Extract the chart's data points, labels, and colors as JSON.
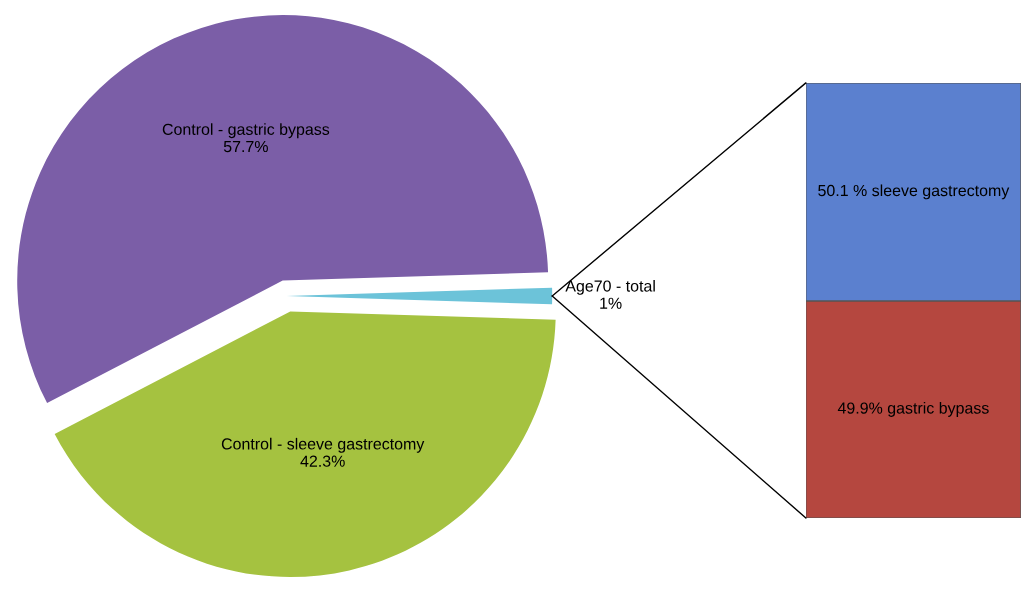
{
  "chart_data": [
    {
      "type": "pie",
      "categories": [
        "Control - gastric bypass",
        "Control - sleeve gastrectomy",
        "Age70 - total"
      ],
      "values": [
        57.7,
        42.3,
        1
      ],
      "value_labels": [
        "57.7%",
        "42.3%",
        "1%"
      ],
      "colors": [
        "#7b5ea7",
        "#a5c240",
        "#6cc3d9"
      ],
      "legend": false
    },
    {
      "type": "bar",
      "stacked": true,
      "categories": [
        null
      ],
      "legend": false,
      "series": [
        {
          "color": "#b5473f",
          "values": [
            49.9
          ],
          "value_labels": [
            "49.9% gastric bypass"
          ]
        },
        {
          "color": "#5b80cf",
          "values": [
            50.1
          ],
          "value_labels": [
            "50.1 % sleeve gastrectomy"
          ]
        }
      ]
    }
  ]
}
